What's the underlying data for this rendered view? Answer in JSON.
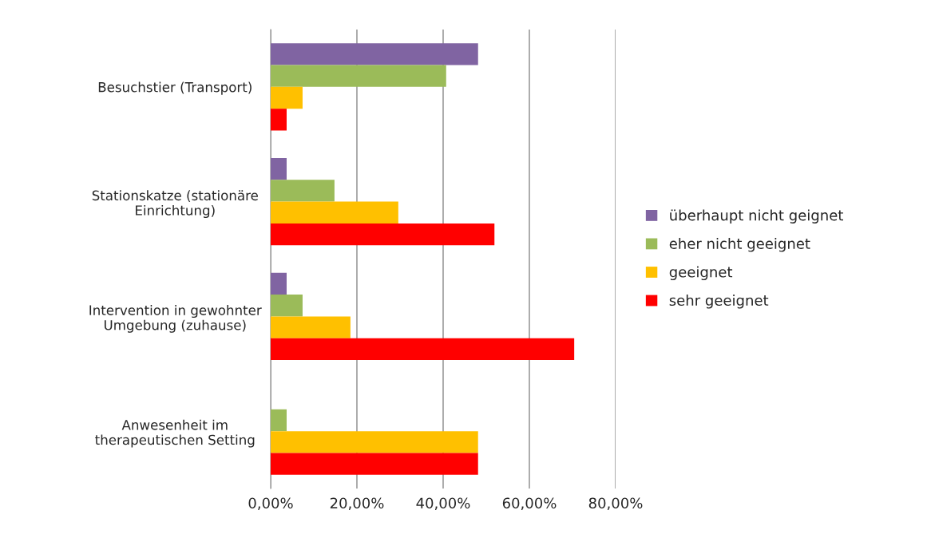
{
  "chart_data": {
    "type": "bar",
    "orientation": "horizontal",
    "categories": [
      "Besuchstier (Transport)",
      "Stationskatze (stationäre\nEinrichtung)",
      "Intervention in gewohnter\nUmgebung (zuhause)",
      "Anwesenheit im\ntherapeutischen Setting"
    ],
    "series": [
      {
        "name": "überhaupt nicht geignet",
        "color": "#8064a2",
        "values": [
          48.1,
          3.7,
          3.7,
          0
        ]
      },
      {
        "name": "eher nicht geeignet",
        "color": "#9bbb59",
        "values": [
          40.7,
          14.8,
          7.4,
          3.7
        ]
      },
      {
        "name": "geeignet",
        "color": "#ffc000",
        "values": [
          7.4,
          29.6,
          18.5,
          48.1
        ]
      },
      {
        "name": "sehr geeignet",
        "color": "#ff0000",
        "values": [
          3.7,
          51.9,
          70.4,
          48.1
        ]
      }
    ],
    "xlim": [
      0,
      80
    ],
    "xticks": [
      {
        "value": 0,
        "label": "0,00%"
      },
      {
        "value": 20,
        "label": "20,00%"
      },
      {
        "value": 40,
        "label": "40,00%"
      },
      {
        "value": 60,
        "label": "60,00%"
      },
      {
        "value": 80,
        "label": "80,00%"
      }
    ],
    "grid": "x",
    "legend": "right"
  }
}
